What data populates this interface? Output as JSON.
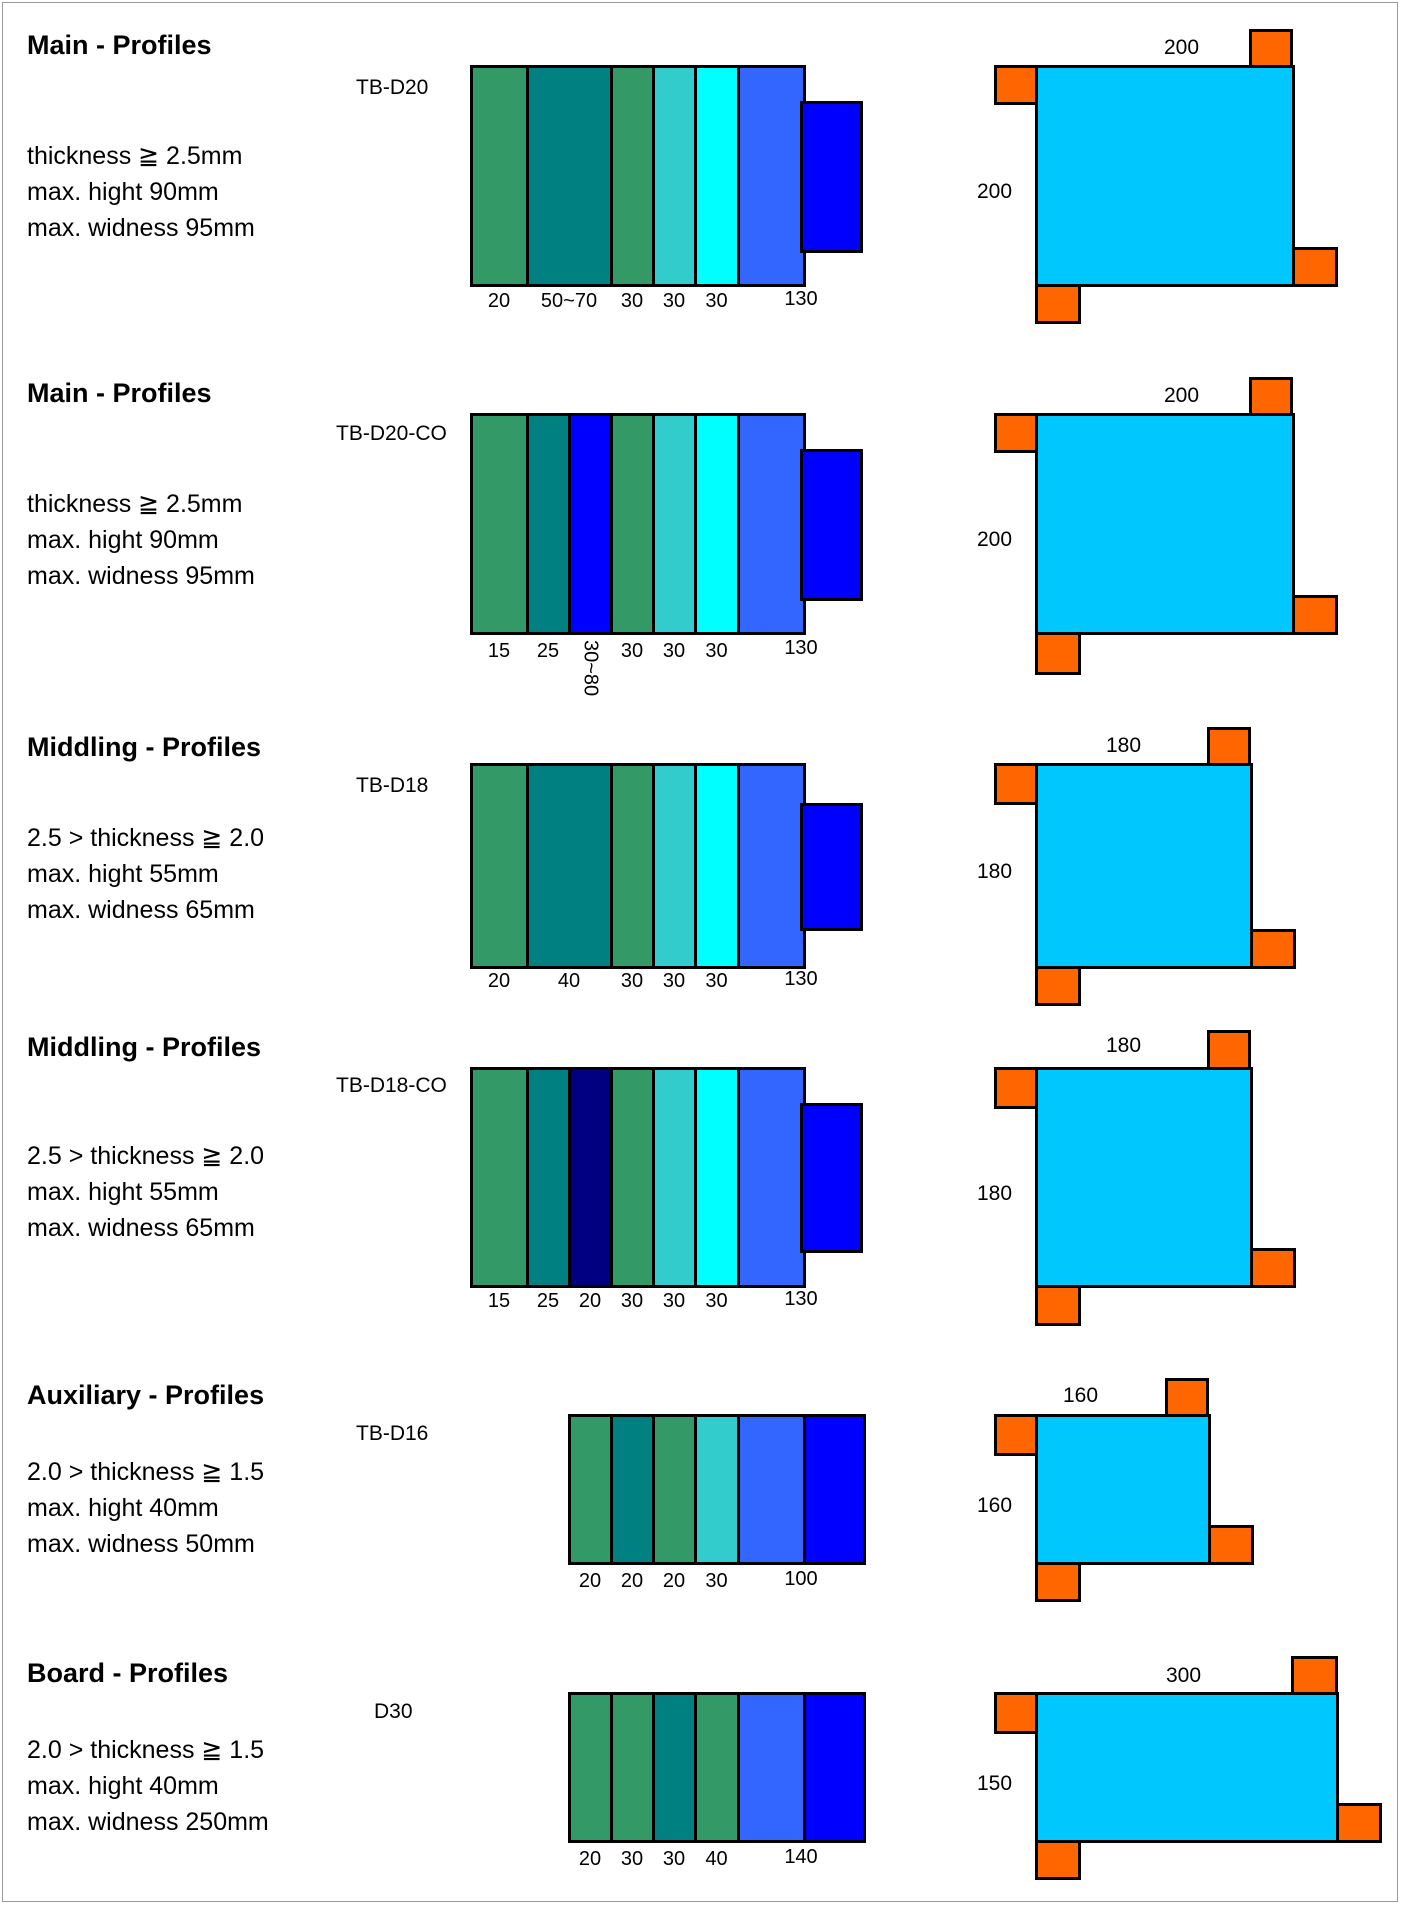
{
  "palette": {
    "seagreen": "#339966",
    "teal": "#008080",
    "blue": "#0000ff",
    "navy": "#000080",
    "turquoise": "#33cccc",
    "aqua": "#00ffff",
    "royal": "#3366ff",
    "box": "#00c8ff",
    "clip": "#ff6600"
  },
  "profiles": [
    {
      "title": "Main - Profiles",
      "specs": [
        "thickness ≧ 2.5mm",
        "max. hight  90mm",
        "max. widness  95mm"
      ],
      "code": "TB-D20",
      "segments": [
        {
          "label": "20",
          "color": "seagreen"
        },
        {
          "label": "50~70",
          "color": "teal"
        },
        {
          "label": "30",
          "color": "seagreen"
        },
        {
          "label": "30",
          "color": "turquoise"
        },
        {
          "label": "30",
          "color": "aqua"
        },
        {
          "label": "",
          "color": "royal"
        }
      ],
      "tongue_label": "130",
      "box_width": "200",
      "box_height": "200"
    },
    {
      "title": "Main - Profiles",
      "specs": [
        "thickness ≧ 2.5mm",
        "max. hight  90mm",
        "max. widness  95mm"
      ],
      "code": "TB-D20-CO",
      "segments": [
        {
          "label": "15",
          "color": "seagreen"
        },
        {
          "label": "25",
          "color": "teal"
        },
        {
          "label": "30~80",
          "color": "blue",
          "rotated": true
        },
        {
          "label": "30",
          "color": "seagreen"
        },
        {
          "label": "30",
          "color": "turquoise"
        },
        {
          "label": "30",
          "color": "aqua"
        },
        {
          "label": "",
          "color": "royal"
        }
      ],
      "tongue_label": "130",
      "box_width": "200",
      "box_height": "200"
    },
    {
      "title": "Middling - Profiles",
      "specs": [
        "2.5 > thickness ≧ 2.0",
        "max. hight  55mm",
        "max. widness  65mm"
      ],
      "code": "TB-D18",
      "segments": [
        {
          "label": "20",
          "color": "seagreen"
        },
        {
          "label": "40",
          "color": "teal"
        },
        {
          "label": "30",
          "color": "seagreen"
        },
        {
          "label": "30",
          "color": "turquoise"
        },
        {
          "label": "30",
          "color": "aqua"
        },
        {
          "label": "",
          "color": "royal"
        }
      ],
      "tongue_label": "130",
      "box_width": "180",
      "box_height": "180"
    },
    {
      "title": "Middling - Profiles",
      "specs": [
        "2.5 > thickness ≧ 2.0",
        "max. hight  55mm",
        "max. widness  65mm"
      ],
      "code": "TB-D18-CO",
      "segments": [
        {
          "label": "15",
          "color": "seagreen"
        },
        {
          "label": "25",
          "color": "teal"
        },
        {
          "label": "20",
          "color": "navy"
        },
        {
          "label": "30",
          "color": "seagreen"
        },
        {
          "label": "30",
          "color": "turquoise"
        },
        {
          "label": "30",
          "color": "aqua"
        },
        {
          "label": "",
          "color": "royal"
        }
      ],
      "tongue_label": "130",
      "box_width": "180",
      "box_height": "180"
    },
    {
      "title": "Auxiliary - Profiles",
      "specs": [
        "2.0 > thickness ≧ 1.5",
        "max. hight  40mm",
        "max. widness  50mm"
      ],
      "code": "TB-D16",
      "segments": [
        {
          "label": "20",
          "color": "seagreen"
        },
        {
          "label": "20",
          "color": "teal"
        },
        {
          "label": "20",
          "color": "seagreen"
        },
        {
          "label": "30",
          "color": "turquoise"
        },
        {
          "label": "",
          "color": "royal"
        },
        {
          "label": "",
          "color": "blue"
        }
      ],
      "tongue_label": "100",
      "box_width": "160",
      "box_height": "160"
    },
    {
      "title": "Board - Profiles",
      "specs": [
        "2.0 > thickness ≧ 1.5",
        "max. hight  40mm",
        "max. widness  250mm"
      ],
      "code": "D30",
      "segments": [
        {
          "label": "20",
          "color": "seagreen"
        },
        {
          "label": "30",
          "color": "seagreen"
        },
        {
          "label": "30",
          "color": "teal"
        },
        {
          "label": "40",
          "color": "seagreen"
        },
        {
          "label": "",
          "color": "royal"
        },
        {
          "label": "",
          "color": "blue"
        }
      ],
      "tongue_label": "140",
      "box_width": "300",
      "box_height": "150"
    }
  ]
}
